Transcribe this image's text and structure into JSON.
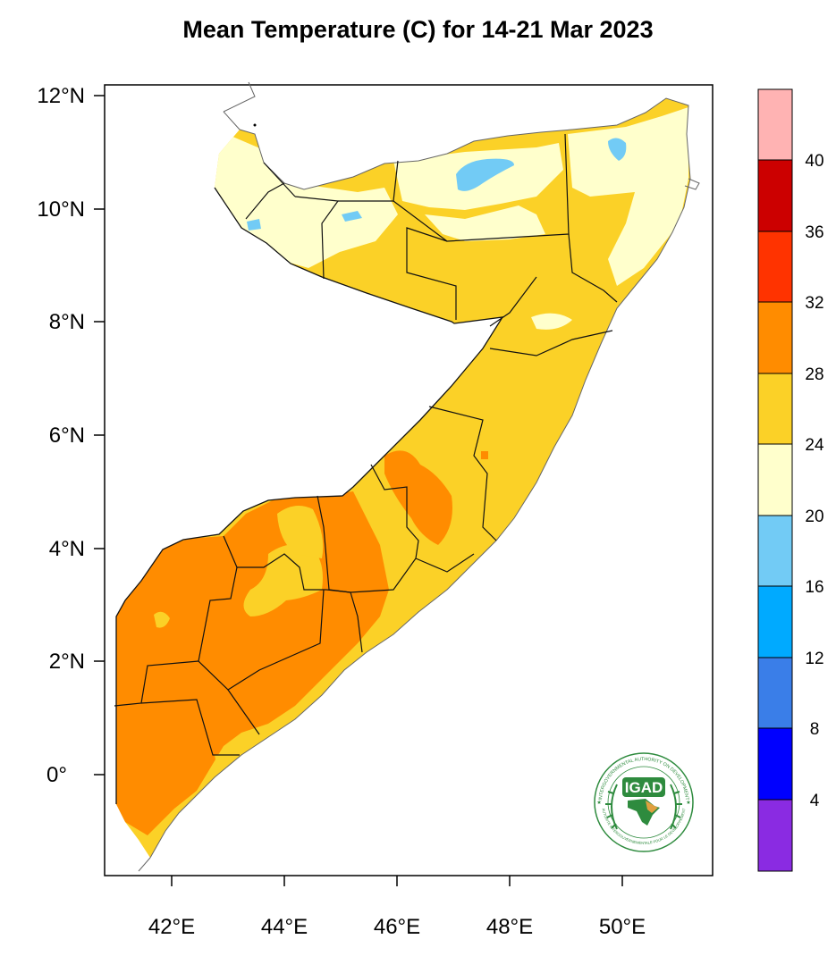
{
  "title": "Mean Temperature (C) for 14-21 Mar 2023",
  "colors": {
    "ocean": "#ffffff",
    "border": "#111111",
    "coast": "#666666"
  },
  "axes": {
    "x_ticks": [
      {
        "value": 42,
        "label": "42°E"
      },
      {
        "value": 44,
        "label": "44°E"
      },
      {
        "value": 46,
        "label": "46°E"
      },
      {
        "value": 48,
        "label": "48°E"
      },
      {
        "value": 50,
        "label": "50°E"
      }
    ],
    "y_ticks": [
      {
        "value": 12,
        "label": "12°N"
      },
      {
        "value": 10,
        "label": "10°N"
      },
      {
        "value": 8,
        "label": "8°N"
      },
      {
        "value": 6,
        "label": "6°N"
      },
      {
        "value": 4,
        "label": "4°N"
      },
      {
        "value": 2,
        "label": "2°N"
      },
      {
        "value": 0,
        "label": "0°"
      }
    ],
    "xlim": [
      40.9,
      51.7
    ],
    "ylim": [
      -1.8,
      12.2
    ]
  },
  "colorbar": {
    "bins": [
      {
        "color": "#8a2be2"
      },
      {
        "color": "#0000ff"
      },
      {
        "color": "#3a7ee8"
      },
      {
        "color": "#00aaff"
      },
      {
        "color": "#72cbf5"
      },
      {
        "color": "#ffffcc"
      },
      {
        "color": "#fbd127"
      },
      {
        "color": "#ff8c00"
      },
      {
        "color": "#ff3300"
      },
      {
        "color": "#cc0000"
      },
      {
        "color": "#ffb3b3"
      }
    ],
    "labels": [
      "4",
      "8",
      "12",
      "16",
      "20",
      "24",
      "28",
      "32",
      "36",
      "40"
    ]
  },
  "logo": {
    "text": "IGAD",
    "ring_text": "INTERGOVERNMENTAL AUTHORITY ON DEVELOPMENT",
    "ring_text_fr": "AUTORITE INTERGOUVERNEMENTALE POUR LE DEVELOPPEMENT",
    "color": "#2e8b3e"
  }
}
